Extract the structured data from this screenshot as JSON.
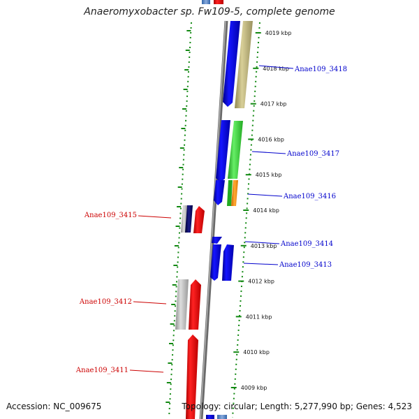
{
  "title": "Anaeromyxobacter sp. Fw109-5, complete genome",
  "footer": {
    "accession": "Accession: NC_009675",
    "summary": "Topology: circular; Length: 5,277,990 bp; Genes: 4,523"
  },
  "scale_labels": [
    "4019 kbp",
    "4018 kbp",
    "4017 kbp",
    "4016 kbp",
    "4015 kbp",
    "4014 kbp",
    "4013 kbp",
    "4012 kbp",
    "4011 kbp",
    "4010 kbp",
    "4009 kbp"
  ],
  "gene_labels": {
    "forward": [
      "Anae109_3418",
      "Anae109_3417",
      "Anae109_3416",
      "Anae109_3414",
      "Anae109_3413"
    ],
    "reverse": [
      "Anae109_3415",
      "Anae109_3412",
      "Anae109_3411"
    ]
  },
  "colors": {
    "forward_label": "#0000cc",
    "reverse_label": "#cc0000",
    "cds_blue": "#0000ee",
    "cds_red": "#ee0000",
    "tick_green": "#118811",
    "backbone": "#808080",
    "khaki": "#bdb37a",
    "green": "#33cc33",
    "orange": "#ff8800",
    "navy": "#000066",
    "grey": "#b4b4b4"
  }
}
